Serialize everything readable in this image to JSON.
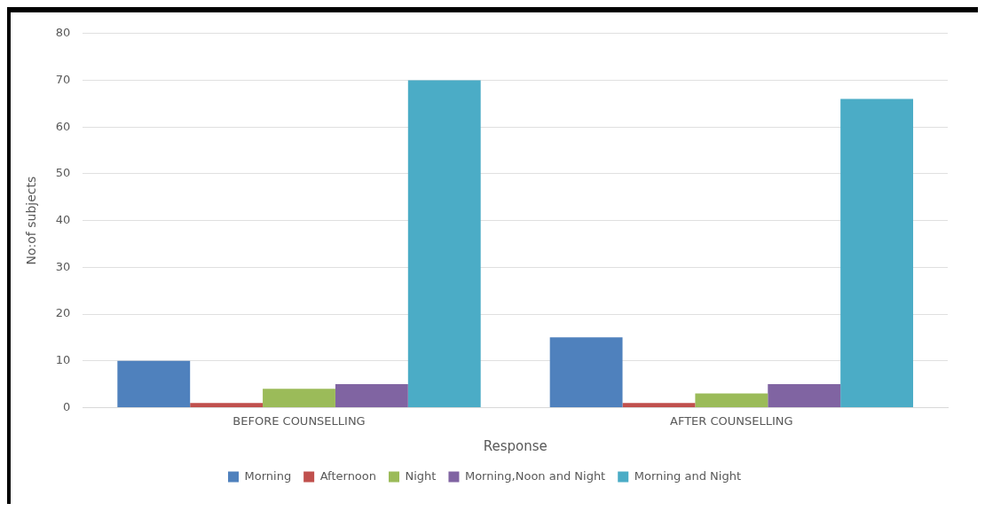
{
  "chart_data": {
    "type": "bar",
    "xlabel": "Response",
    "ylabel": "No:of subjects",
    "categories": [
      "BEFORE COUNSELLING",
      "AFTER COUNSELLING"
    ],
    "series": [
      {
        "name": "Morning",
        "color": "#4f81bd",
        "values": [
          10,
          15
        ]
      },
      {
        "name": "Afternoon",
        "color": "#c0504d",
        "values": [
          1,
          1
        ]
      },
      {
        "name": "Night",
        "color": "#9bbb59",
        "values": [
          4,
          3
        ]
      },
      {
        "name": "Morning,Noon and Night",
        "color": "#8064a2",
        "values": [
          5,
          5
        ]
      },
      {
        "name": "Morning and Night",
        "color": "#4bacc6",
        "values": [
          70,
          66
        ]
      }
    ],
    "ylim": [
      0,
      80
    ],
    "yticks": [
      0,
      10,
      20,
      30,
      40,
      50,
      60,
      70,
      80
    ],
    "grid": "y",
    "legend": "bottom"
  }
}
